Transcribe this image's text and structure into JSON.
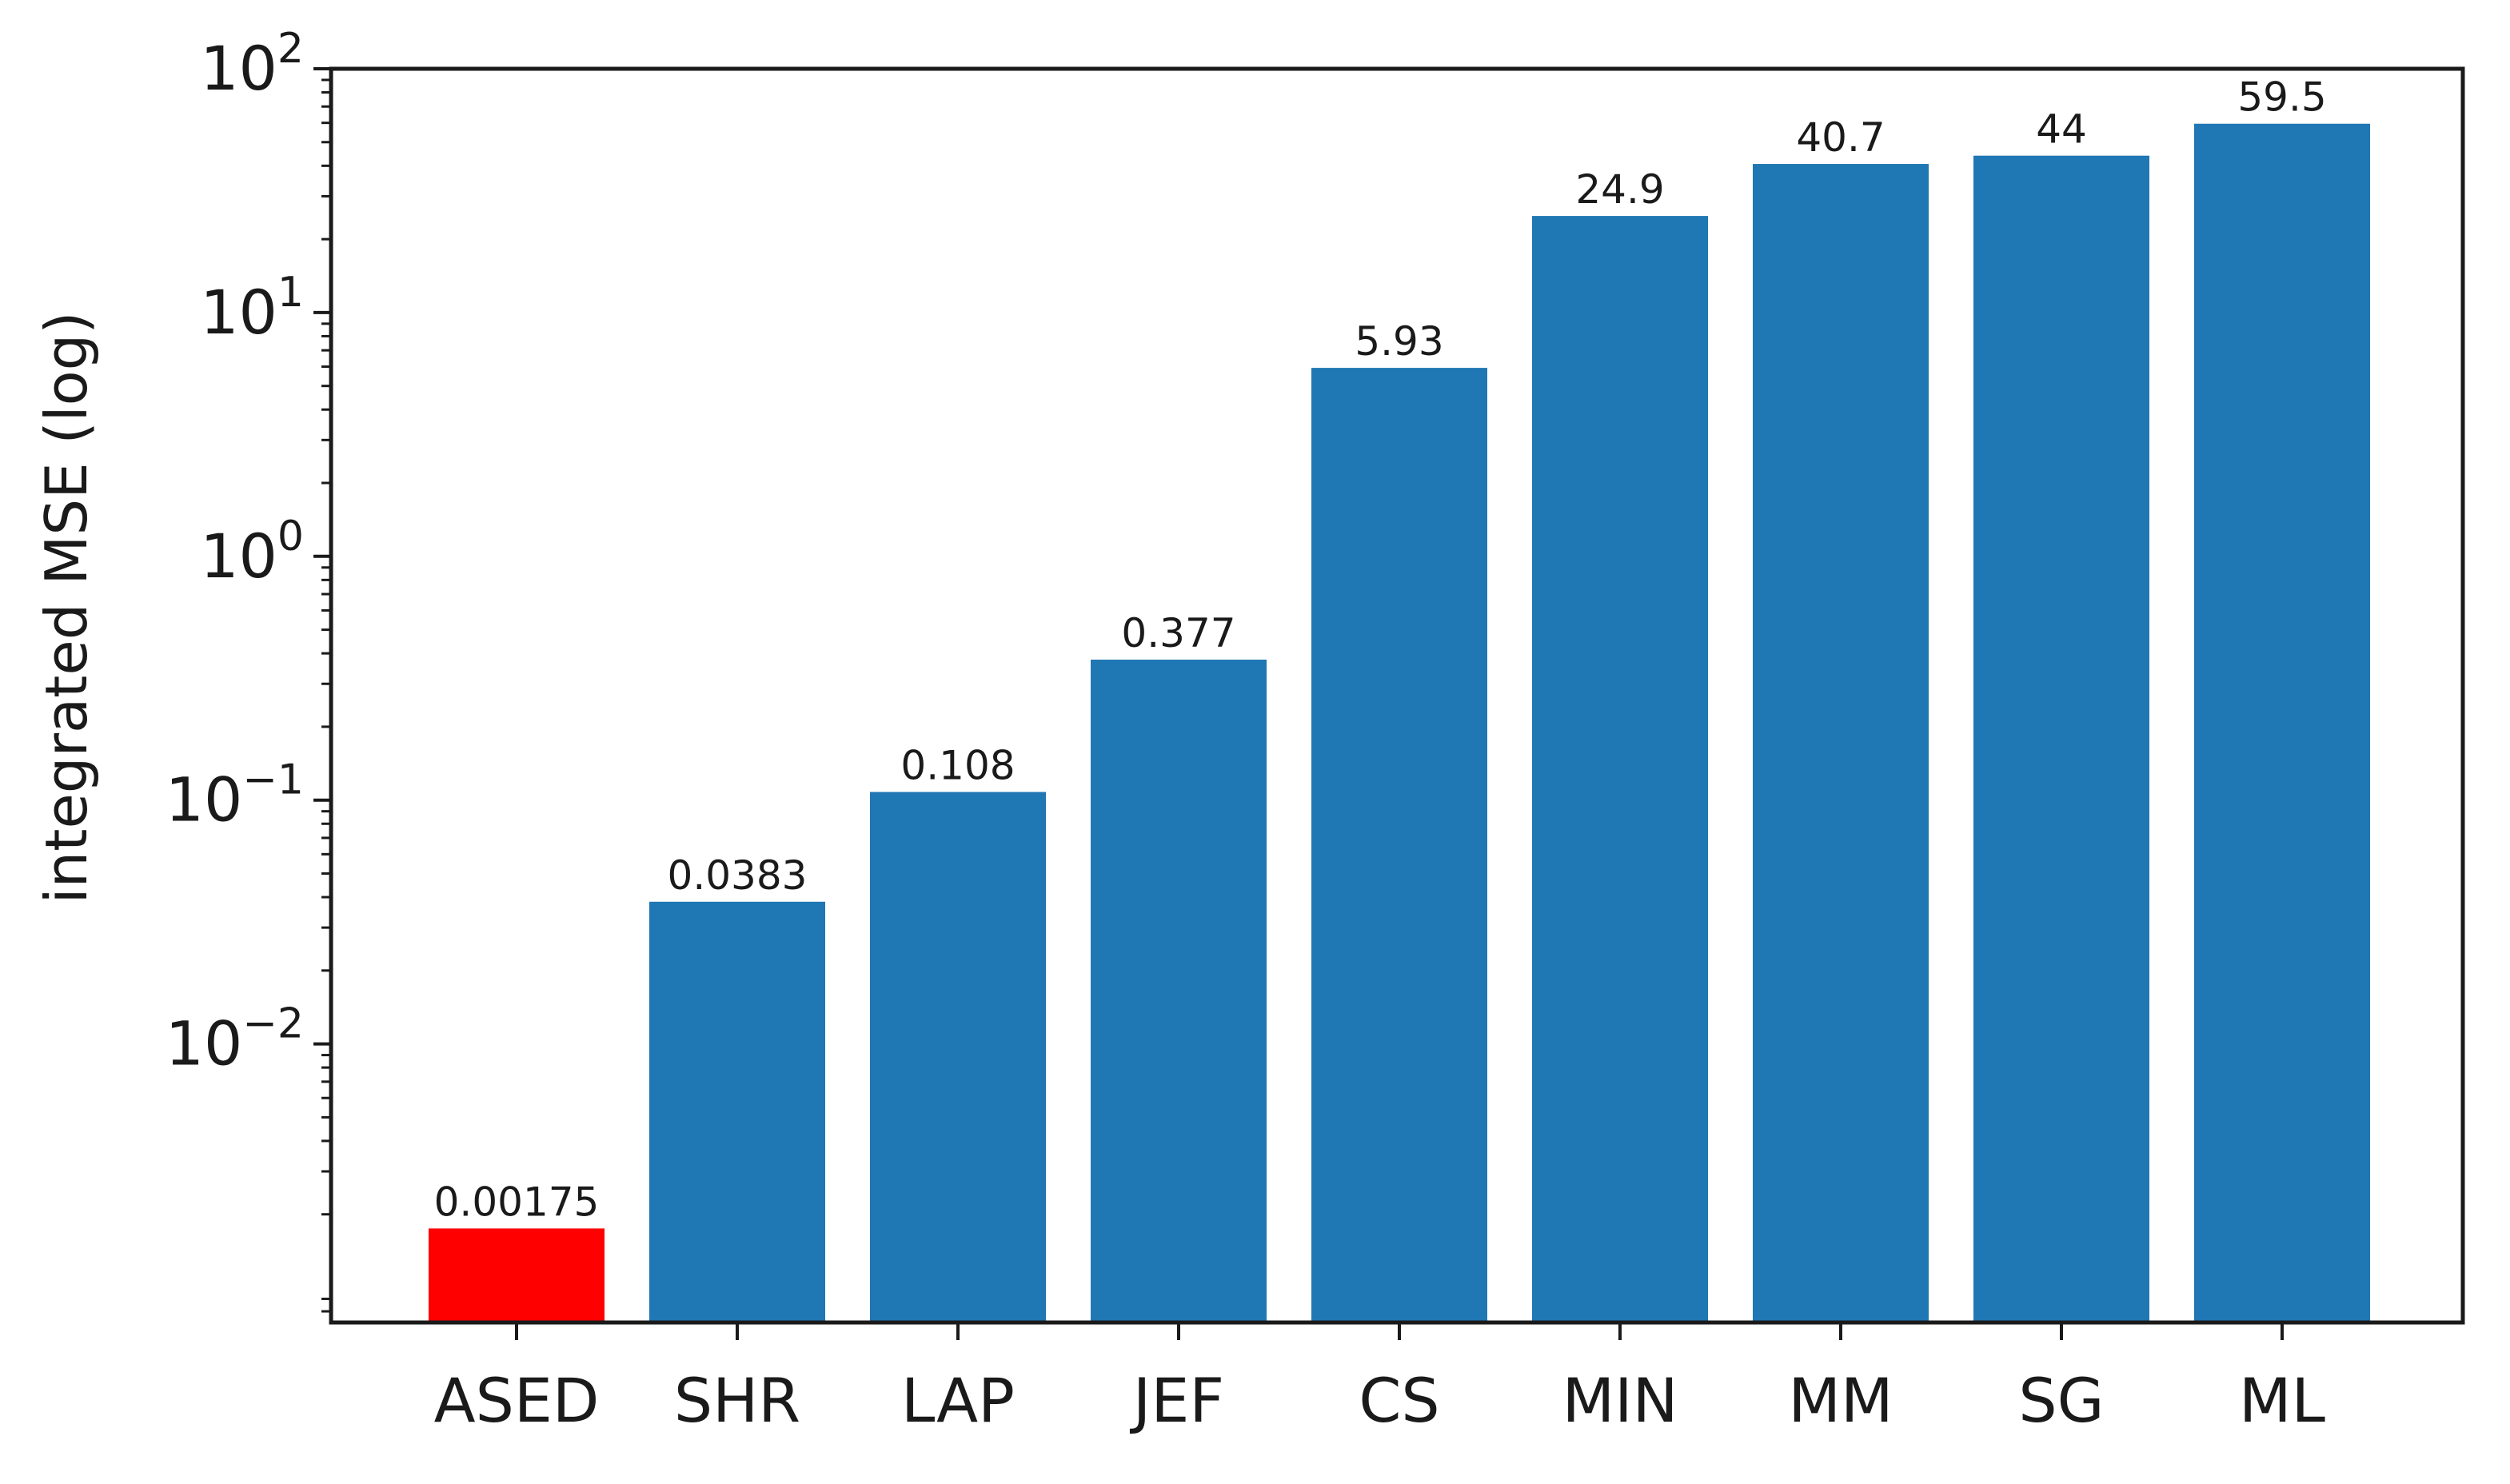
{
  "chart_data": {
    "type": "bar",
    "title": "",
    "xlabel": "",
    "ylabel": "integrated MSE (log)",
    "yscale": "log",
    "ylim": [
      0.00072,
      100
    ],
    "categories": [
      "ASED",
      "SHR",
      "LAP",
      "JEF",
      "CS",
      "MIN",
      "MM",
      "SG",
      "ML"
    ],
    "values": [
      0.00175,
      0.0383,
      0.108,
      0.377,
      5.93,
      24.9,
      40.7,
      44,
      59.5
    ],
    "value_labels": [
      "0.00175",
      "0.0383",
      "0.108",
      "0.377",
      "5.93",
      "24.9",
      "40.7",
      "44",
      "59.5"
    ],
    "colors": [
      "#ff0000",
      "#1f77b4",
      "#1f77b4",
      "#1f77b4",
      "#1f77b4",
      "#1f77b4",
      "#1f77b4",
      "#1f77b4",
      "#1f77b4"
    ],
    "y_ticks": [
      {
        "value": 0.01,
        "base": "10",
        "exp": "−2"
      },
      {
        "value": 0.1,
        "base": "10",
        "exp": "−1"
      },
      {
        "value": 1,
        "base": "10",
        "exp": "0"
      },
      {
        "value": 10,
        "base": "10",
        "exp": "1"
      },
      {
        "value": 100,
        "base": "10",
        "exp": "2"
      }
    ],
    "grid": false,
    "legend": "none"
  }
}
